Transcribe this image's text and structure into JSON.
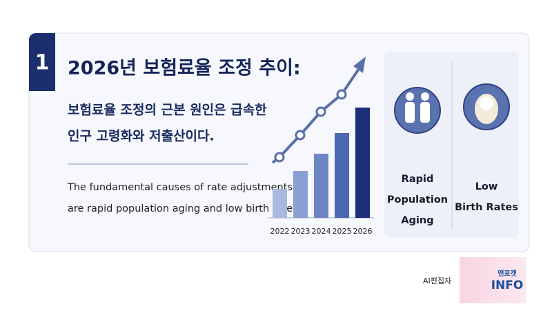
{
  "badge": "1",
  "title": "2026년 보험료율 조정 추이:",
  "subtitle": [
    "보험료율 조정의 근본 원인은 급속한",
    "인구 고령화와 저출산이다."
  ],
  "description": [
    "The fundamental causes of rate adjustments",
    "are rapid population aging and low birth rates."
  ],
  "chart_data": {
    "type": "bar",
    "categories": [
      "2022",
      "2023",
      "2024",
      "2025",
      "2026"
    ],
    "values": [
      42,
      68,
      93,
      123,
      160
    ],
    "colors": [
      "#a9b8dd",
      "#8a9fd2",
      "#6d86c3",
      "#4c68b0",
      "#1e2f7a"
    ]
  },
  "causes": [
    {
      "label": "Rapid\nPopulation\nAging"
    },
    {
      "label": "Low\nBirth Rates"
    }
  ],
  "footer": {
    "editor": "AI편집자",
    "logo_small": "앤포켓",
    "logo_big": "INFO"
  }
}
